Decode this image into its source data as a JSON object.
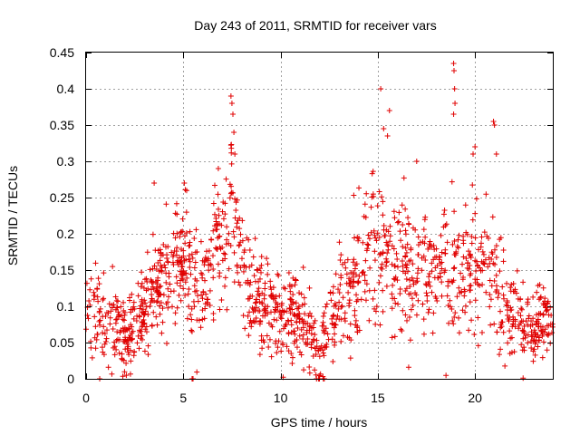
{
  "chart_data": {
    "type": "scatter",
    "title": "Day 243 of 2011, SRMTID for receiver vars",
    "xlabel": "GPS time / hours",
    "ylabel": "SRMTID / TECUs",
    "xlim": [
      0,
      24
    ],
    "ylim": [
      0,
      0.45
    ],
    "xticks": [
      0,
      5,
      10,
      15,
      20
    ],
    "yticks": [
      0,
      0.05,
      0.1,
      0.15,
      0.2,
      0.25,
      0.3,
      0.35,
      0.4,
      0.45
    ],
    "grid": true,
    "marker": "+",
    "color": "#e00000",
    "series": [
      {
        "name": "SRMTID",
        "profile": [
          {
            "x": 0.0,
            "y": 0.1,
            "spread": 0.035
          },
          {
            "x": 1.0,
            "y": 0.09,
            "spread": 0.04
          },
          {
            "x": 2.0,
            "y": 0.06,
            "spread": 0.04
          },
          {
            "x": 3.0,
            "y": 0.1,
            "spread": 0.04
          },
          {
            "x": 4.0,
            "y": 0.14,
            "spread": 0.045
          },
          {
            "x": 5.0,
            "y": 0.17,
            "spread": 0.05
          },
          {
            "x": 6.0,
            "y": 0.12,
            "spread": 0.045
          },
          {
            "x": 7.0,
            "y": 0.19,
            "spread": 0.06
          },
          {
            "x": 7.5,
            "y": 0.25,
            "spread": 0.07
          },
          {
            "x": 8.0,
            "y": 0.14,
            "spread": 0.05
          },
          {
            "x": 9.0,
            "y": 0.1,
            "spread": 0.04
          },
          {
            "x": 10.0,
            "y": 0.09,
            "spread": 0.04
          },
          {
            "x": 11.0,
            "y": 0.08,
            "spread": 0.04
          },
          {
            "x": 12.0,
            "y": 0.04,
            "spread": 0.03
          },
          {
            "x": 13.0,
            "y": 0.1,
            "spread": 0.045
          },
          {
            "x": 14.0,
            "y": 0.14,
            "spread": 0.05
          },
          {
            "x": 15.0,
            "y": 0.18,
            "spread": 0.06
          },
          {
            "x": 16.0,
            "y": 0.16,
            "spread": 0.055
          },
          {
            "x": 17.0,
            "y": 0.15,
            "spread": 0.05
          },
          {
            "x": 18.0,
            "y": 0.14,
            "spread": 0.05
          },
          {
            "x": 19.0,
            "y": 0.16,
            "spread": 0.06
          },
          {
            "x": 20.0,
            "y": 0.15,
            "spread": 0.06
          },
          {
            "x": 21.0,
            "y": 0.13,
            "spread": 0.055
          },
          {
            "x": 22.0,
            "y": 0.08,
            "spread": 0.035
          },
          {
            "x": 23.0,
            "y": 0.07,
            "spread": 0.035
          },
          {
            "x": 24.0,
            "y": 0.08,
            "spread": 0.035
          }
        ],
        "count": 1500,
        "outliers": [
          {
            "x": 7.45,
            "y": 0.39
          },
          {
            "x": 7.5,
            "y": 0.38
          },
          {
            "x": 7.55,
            "y": 0.365
          },
          {
            "x": 7.6,
            "y": 0.34
          },
          {
            "x": 7.65,
            "y": 0.31
          },
          {
            "x": 15.15,
            "y": 0.4
          },
          {
            "x": 15.3,
            "y": 0.345
          },
          {
            "x": 15.5,
            "y": 0.335
          },
          {
            "x": 15.6,
            "y": 0.37
          },
          {
            "x": 18.9,
            "y": 0.435
          },
          {
            "x": 18.92,
            "y": 0.425
          },
          {
            "x": 18.95,
            "y": 0.4
          },
          {
            "x": 18.97,
            "y": 0.38
          },
          {
            "x": 18.9,
            "y": 0.365
          },
          {
            "x": 20.95,
            "y": 0.355
          },
          {
            "x": 21.0,
            "y": 0.35
          },
          {
            "x": 20.0,
            "y": 0.32
          },
          {
            "x": 19.9,
            "y": 0.31
          },
          {
            "x": 6.8,
            "y": 0.29
          },
          {
            "x": 3.5,
            "y": 0.27
          },
          {
            "x": 5.05,
            "y": 0.27
          },
          {
            "x": 17.0,
            "y": 0.3
          },
          {
            "x": 21.1,
            "y": 0.31
          },
          {
            "x": 0.7,
            "y": 0.0
          },
          {
            "x": 5.45,
            "y": 0.0
          },
          {
            "x": 5.5,
            "y": 0.0
          },
          {
            "x": 11.85,
            "y": 0.0
          },
          {
            "x": 11.95,
            "y": 0.0
          },
          {
            "x": 12.0,
            "y": 0.0
          },
          {
            "x": 12.2,
            "y": 0.0
          },
          {
            "x": 12.25,
            "y": 0.0
          }
        ]
      }
    ]
  }
}
